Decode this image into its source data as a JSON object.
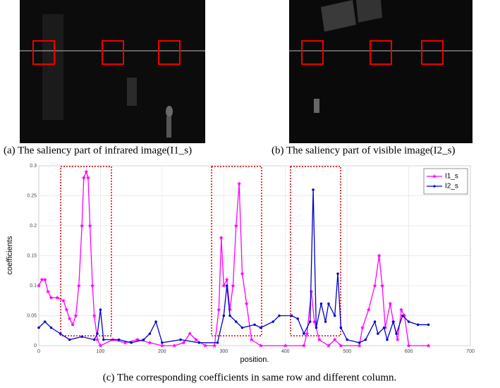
{
  "figure": {
    "captions": [
      "(a) The saliency part of infrared image(I1_s)",
      "(b) The saliency part of visible image(I2_s)"
    ]
  },
  "chart_data": {
    "type": "line",
    "caption": "(c) The corresponding coefficients in same row and different column.",
    "x_label": "position.",
    "y_label": "coefficients",
    "xlim": [
      0,
      700
    ],
    "xticks": [
      0,
      100,
      200,
      300,
      400,
      500,
      600,
      700
    ],
    "ylim": [
      0,
      0.3
    ],
    "yticks": [
      0,
      0.05,
      0.1,
      0.15,
      0.2,
      0.25,
      0.3
    ],
    "grid": true,
    "legend": "top-right",
    "series": [
      {
        "name": "I1_s",
        "color": "#ff00ff",
        "marker": "star",
        "x": [
          0,
          5,
          10,
          15,
          20,
          30,
          40,
          45,
          50,
          55,
          60,
          65,
          70,
          73,
          77,
          80,
          83,
          87,
          90,
          95,
          100,
          120,
          140,
          160,
          180,
          200,
          220,
          235,
          245,
          255,
          270,
          285,
          292,
          296,
          300,
          305,
          310,
          315,
          320,
          325,
          330,
          337,
          345,
          360,
          400,
          430,
          435,
          442,
          447,
          455,
          470,
          480,
          490,
          520,
          525,
          535,
          545,
          552,
          557,
          562,
          570,
          575,
          582,
          588,
          593,
          600,
          632
        ],
        "values": [
          0.1,
          0.11,
          0.11,
          0.09,
          0.08,
          0.08,
          0.075,
          0.06,
          0.045,
          0.035,
          0.05,
          0.1,
          0.2,
          0.28,
          0.29,
          0.28,
          0.2,
          0.1,
          0.05,
          0.01,
          0,
          0.01,
          0.005,
          0.01,
          0.005,
          0,
          0,
          0.005,
          0.02,
          0.01,
          0,
          0,
          0.06,
          0.18,
          0.1,
          0.11,
          0.06,
          0.1,
          0.2,
          0.27,
          0.12,
          0.07,
          0.01,
          0,
          0,
          0,
          0.02,
          0.09,
          0.04,
          0.01,
          0,
          0.01,
          0,
          0,
          0.03,
          0.06,
          0.1,
          0.15,
          0.1,
          0.03,
          0.07,
          0.04,
          0.01,
          0.06,
          0.05,
          0,
          0
        ]
      },
      {
        "name": "I2_s",
        "color": "#0000cc",
        "marker": "dot",
        "x": [
          0,
          10,
          20,
          35,
          50,
          70,
          90,
          95,
          100,
          105,
          130,
          150,
          170,
          180,
          190,
          200,
          230,
          260,
          290,
          300,
          305,
          310,
          320,
          330,
          350,
          360,
          380,
          390,
          410,
          420,
          430,
          440,
          445,
          450,
          458,
          465,
          470,
          480,
          485,
          490,
          500,
          520,
          530,
          545,
          550,
          560,
          565,
          575,
          580,
          590,
          600,
          615,
          632
        ],
        "values": [
          0.03,
          0.04,
          0.03,
          0.02,
          0.01,
          0.015,
          0.01,
          0.02,
          0.06,
          0.01,
          0.01,
          0.005,
          0.01,
          0.02,
          0.04,
          0.005,
          0.01,
          0.005,
          0.005,
          0.05,
          0.1,
          0.05,
          0.04,
          0.03,
          0.035,
          0.03,
          0.04,
          0.05,
          0.05,
          0.045,
          0.02,
          0.04,
          0.26,
          0.03,
          0.07,
          0.04,
          0.07,
          0.05,
          0.12,
          0.03,
          0.01,
          0.005,
          0.01,
          0.04,
          0.02,
          0.03,
          0.01,
          0.04,
          0.02,
          0.05,
          0.04,
          0.035,
          0.035
        ]
      }
    ]
  }
}
